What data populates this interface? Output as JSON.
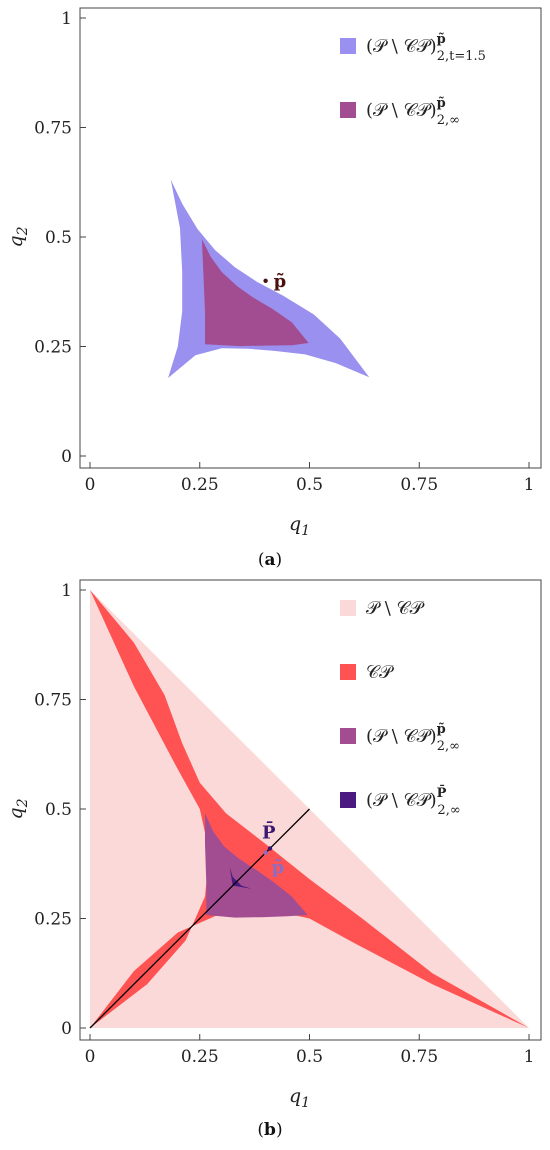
{
  "chart_data": [
    {
      "panel": "a",
      "caption": "(a)",
      "type": "area",
      "xlabel": "q1",
      "ylabel": "q2",
      "xlim": [
        0,
        1
      ],
      "ylim": [
        0,
        1
      ],
      "ticks": [
        "0",
        "0.25",
        "0.5",
        "0.75",
        "1"
      ],
      "tick_values": [
        0,
        0.25,
        0.5,
        0.75,
        1
      ],
      "grid": false,
      "legend_position": "top-right",
      "series": [
        {
          "name": "(P \\ CP)^p̃_{2,t=1.5}",
          "color": "#9a90ef",
          "region": [
            [
              0.184,
              0.631
            ],
            [
              0.21,
              0.576
            ],
            [
              0.245,
              0.518
            ],
            [
              0.285,
              0.47
            ],
            [
              0.33,
              0.431
            ],
            [
              0.38,
              0.398
            ],
            [
              0.44,
              0.366
            ],
            [
              0.51,
              0.323
            ],
            [
              0.57,
              0.268
            ],
            [
              0.636,
              0.18
            ],
            [
              0.56,
              0.212
            ],
            [
              0.49,
              0.232
            ],
            [
              0.42,
              0.24
            ],
            [
              0.36,
              0.245
            ],
            [
              0.3,
              0.246
            ],
            [
              0.24,
              0.23
            ],
            [
              0.178,
              0.178
            ],
            [
              0.2,
              0.25
            ],
            [
              0.21,
              0.33
            ],
            [
              0.21,
              0.42
            ],
            [
              0.205,
              0.52
            ]
          ]
        },
        {
          "name": "(P \\ CP)^p̃_{2,∞}",
          "color": "#a24d92",
          "region": [
            [
              0.255,
              0.495
            ],
            [
              0.275,
              0.455
            ],
            [
              0.3,
              0.42
            ],
            [
              0.335,
              0.388
            ],
            [
              0.37,
              0.363
            ],
            [
              0.415,
              0.336
            ],
            [
              0.46,
              0.305
            ],
            [
              0.498,
              0.258
            ],
            [
              0.46,
              0.253
            ],
            [
              0.4,
              0.252
            ],
            [
              0.34,
              0.251
            ],
            [
              0.262,
              0.255
            ],
            [
              0.262,
              0.33
            ],
            [
              0.258,
              0.42
            ]
          ]
        }
      ],
      "points": [
        {
          "label": "p̃",
          "x": 0.4,
          "y": 0.4,
          "color": "#4a1010"
        }
      ]
    },
    {
      "panel": "b",
      "caption": "(b)",
      "type": "area",
      "xlabel": "q1",
      "ylabel": "q2",
      "xlim": [
        0,
        1
      ],
      "ylim": [
        0,
        1
      ],
      "ticks": [
        "0",
        "0.25",
        "0.5",
        "0.75",
        "1"
      ],
      "tick_values": [
        0,
        0.25,
        0.5,
        0.75,
        1
      ],
      "grid": false,
      "legend_position": "top-right",
      "series": [
        {
          "name": "P \\ CP",
          "color": "#fbd9d9",
          "region": [
            [
              0,
              0
            ],
            [
              1,
              0
            ],
            [
              0,
              1
            ]
          ]
        },
        {
          "name": "CP",
          "color": "#ff5252",
          "region": [
            [
              0,
              1
            ],
            [
              0.1,
              0.88
            ],
            [
              0.17,
              0.76
            ],
            [
              0.21,
              0.65
            ],
            [
              0.25,
              0.56
            ],
            [
              0.31,
              0.49
            ],
            [
              0.4,
              0.42
            ],
            [
              0.5,
              0.34
            ],
            [
              0.62,
              0.25
            ],
            [
              0.78,
              0.125
            ],
            [
              1,
              0
            ],
            [
              0.78,
              0.1
            ],
            [
              0.6,
              0.195
            ],
            [
              0.5,
              0.25
            ],
            [
              0.4,
              0.272
            ],
            [
              0.3,
              0.262
            ],
            [
              0.2,
              0.218
            ],
            [
              0.1,
              0.13
            ],
            [
              0,
              0
            ],
            [
              0.13,
              0.1
            ],
            [
              0.218,
              0.2
            ],
            [
              0.262,
              0.3
            ],
            [
              0.272,
              0.4
            ],
            [
              0.25,
              0.5
            ],
            [
              0.195,
              0.6
            ],
            [
              0.1,
              0.78
            ]
          ]
        },
        {
          "name": "(P \\ CP)^p̃_{2,∞}",
          "color": "#a24d92",
          "region": [
            [
              0.262,
              0.49
            ],
            [
              0.28,
              0.45
            ],
            [
              0.305,
              0.415
            ],
            [
              0.34,
              0.386
            ],
            [
              0.38,
              0.36
            ],
            [
              0.42,
              0.332
            ],
            [
              0.46,
              0.3
            ],
            [
              0.496,
              0.258
            ],
            [
              0.45,
              0.255
            ],
            [
              0.39,
              0.253
            ],
            [
              0.33,
              0.252
            ],
            [
              0.265,
              0.258
            ],
            [
              0.265,
              0.33
            ],
            [
              0.262,
              0.42
            ]
          ]
        },
        {
          "name": "(P \\ CP)^P̄_{2,∞}",
          "color": "#4a1a80",
          "region": [
            [
              0.318,
              0.368
            ],
            [
              0.325,
              0.345
            ],
            [
              0.345,
              0.325
            ],
            [
              0.368,
              0.318
            ],
            [
              0.325,
              0.325
            ]
          ]
        }
      ],
      "lines": [
        {
          "x": [
            0,
            0.5
          ],
          "y": [
            0,
            0.5
          ],
          "color": "#000000"
        }
      ],
      "points": [
        {
          "label": "P̄",
          "x": 0.41,
          "y": 0.41,
          "color": "#3a1670"
        },
        {
          "label": "p̃",
          "x": 0.4,
          "y": 0.4,
          "color": "#8d6cc4"
        }
      ]
    }
  ]
}
